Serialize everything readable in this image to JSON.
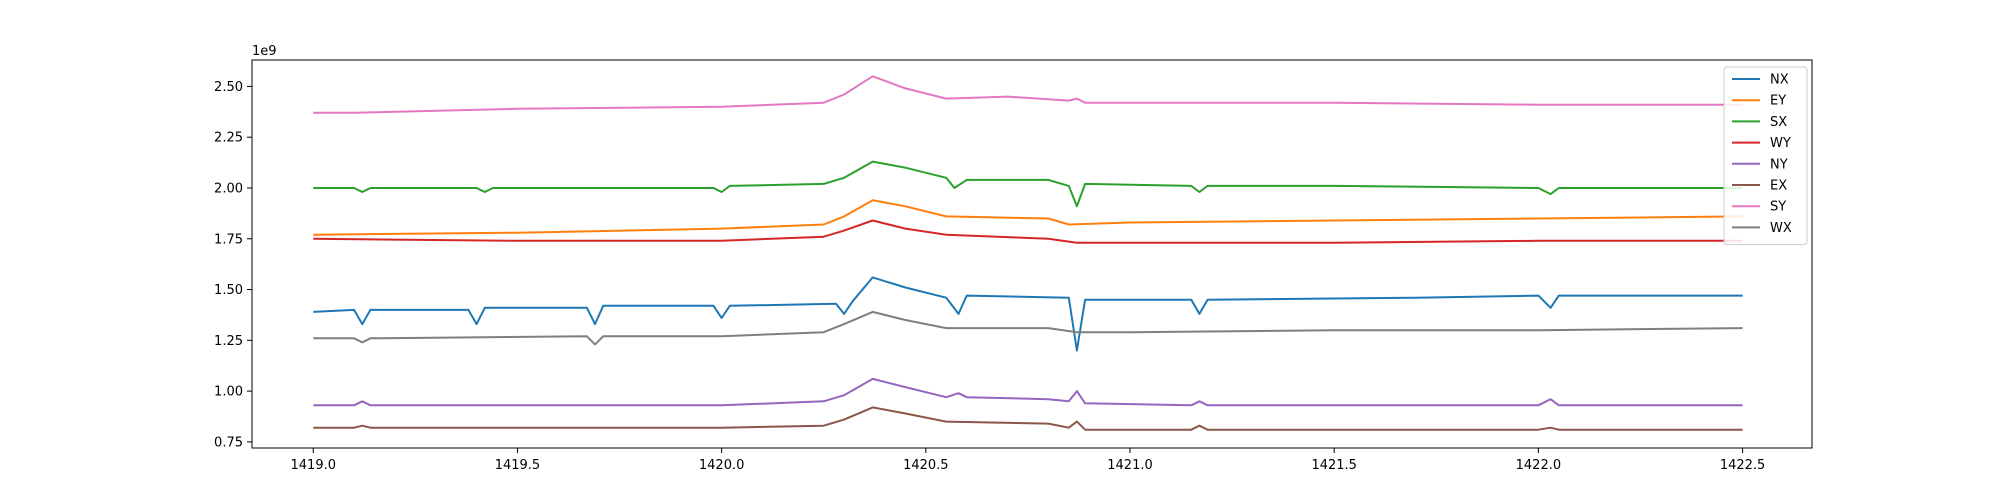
{
  "chart_data": {
    "type": "line",
    "title": "",
    "xlabel": "",
    "ylabel": "",
    "offset_text": "1e9",
    "y_scale_multiplier": 1000000000,
    "xlim": [
      1418.85,
      1422.67
    ],
    "ylim": [
      0.72,
      2.63
    ],
    "x_ticks": [
      1419.0,
      1419.5,
      1420.0,
      1420.5,
      1421.0,
      1421.5,
      1422.0,
      1422.5
    ],
    "x_tick_labels": [
      "1419.0",
      "1419.5",
      "1420.0",
      "1420.5",
      "1421.0",
      "1421.5",
      "1422.0",
      "1422.5"
    ],
    "y_ticks": [
      0.75,
      1.0,
      1.25,
      1.5,
      1.75,
      2.0,
      2.25,
      2.5
    ],
    "y_tick_labels": [
      "0.75",
      "1.00",
      "1.25",
      "1.50",
      "1.75",
      "2.00",
      "2.25",
      "2.50"
    ],
    "grid": false,
    "legend_position": "top-right",
    "series": [
      {
        "name": "NX",
        "color": "#1f77b4",
        "points": [
          [
            1419.0,
            1.39
          ],
          [
            1419.1,
            1.4
          ],
          [
            1419.12,
            1.33
          ],
          [
            1419.14,
            1.4
          ],
          [
            1419.38,
            1.4
          ],
          [
            1419.4,
            1.33
          ],
          [
            1419.42,
            1.41
          ],
          [
            1419.67,
            1.41
          ],
          [
            1419.69,
            1.33
          ],
          [
            1419.71,
            1.42
          ],
          [
            1419.98,
            1.42
          ],
          [
            1420.0,
            1.36
          ],
          [
            1420.02,
            1.42
          ],
          [
            1420.28,
            1.43
          ],
          [
            1420.3,
            1.38
          ],
          [
            1420.32,
            1.44
          ],
          [
            1420.37,
            1.56
          ],
          [
            1420.45,
            1.51
          ],
          [
            1420.55,
            1.46
          ],
          [
            1420.58,
            1.38
          ],
          [
            1420.6,
            1.47
          ],
          [
            1420.85,
            1.46
          ],
          [
            1420.87,
            1.2
          ],
          [
            1420.89,
            1.45
          ],
          [
            1421.15,
            1.45
          ],
          [
            1421.17,
            1.38
          ],
          [
            1421.19,
            1.45
          ],
          [
            1421.7,
            1.46
          ],
          [
            1422.0,
            1.47
          ],
          [
            1422.03,
            1.41
          ],
          [
            1422.05,
            1.47
          ],
          [
            1422.5,
            1.47
          ]
        ]
      },
      {
        "name": "EY",
        "color": "#ff7f0e",
        "points": [
          [
            1419.0,
            1.77
          ],
          [
            1419.5,
            1.78
          ],
          [
            1420.0,
            1.8
          ],
          [
            1420.25,
            1.82
          ],
          [
            1420.3,
            1.86
          ],
          [
            1420.37,
            1.94
          ],
          [
            1420.45,
            1.91
          ],
          [
            1420.55,
            1.86
          ],
          [
            1420.8,
            1.85
          ],
          [
            1420.85,
            1.82
          ],
          [
            1421.0,
            1.83
          ],
          [
            1421.5,
            1.84
          ],
          [
            1422.0,
            1.85
          ],
          [
            1422.5,
            1.86
          ]
        ]
      },
      {
        "name": "SX",
        "color": "#2ca02c",
        "points": [
          [
            1419.0,
            2.0
          ],
          [
            1419.1,
            2.0
          ],
          [
            1419.12,
            1.98
          ],
          [
            1419.14,
            2.0
          ],
          [
            1419.4,
            2.0
          ],
          [
            1419.42,
            1.98
          ],
          [
            1419.44,
            2.0
          ],
          [
            1419.98,
            2.0
          ],
          [
            1420.0,
            1.98
          ],
          [
            1420.02,
            2.01
          ],
          [
            1420.25,
            2.02
          ],
          [
            1420.3,
            2.05
          ],
          [
            1420.37,
            2.13
          ],
          [
            1420.45,
            2.1
          ],
          [
            1420.55,
            2.05
          ],
          [
            1420.57,
            2.0
          ],
          [
            1420.6,
            2.04
          ],
          [
            1420.8,
            2.04
          ],
          [
            1420.85,
            2.01
          ],
          [
            1420.87,
            1.91
          ],
          [
            1420.89,
            2.02
          ],
          [
            1421.15,
            2.01
          ],
          [
            1421.17,
            1.98
          ],
          [
            1421.19,
            2.01
          ],
          [
            1421.5,
            2.01
          ],
          [
            1422.0,
            2.0
          ],
          [
            1422.03,
            1.97
          ],
          [
            1422.05,
            2.0
          ],
          [
            1422.5,
            2.0
          ]
        ]
      },
      {
        "name": "WY",
        "color": "#d62728",
        "points": [
          [
            1419.0,
            1.75
          ],
          [
            1419.5,
            1.74
          ],
          [
            1420.0,
            1.74
          ],
          [
            1420.25,
            1.76
          ],
          [
            1420.3,
            1.79
          ],
          [
            1420.37,
            1.84
          ],
          [
            1420.45,
            1.8
          ],
          [
            1420.55,
            1.77
          ],
          [
            1420.8,
            1.75
          ],
          [
            1420.87,
            1.73
          ],
          [
            1421.0,
            1.73
          ],
          [
            1421.5,
            1.73
          ],
          [
            1422.0,
            1.74
          ],
          [
            1422.5,
            1.74
          ]
        ]
      },
      {
        "name": "NY",
        "color": "#9467bd",
        "points": [
          [
            1419.0,
            0.93
          ],
          [
            1419.1,
            0.93
          ],
          [
            1419.12,
            0.95
          ],
          [
            1419.14,
            0.93
          ],
          [
            1419.5,
            0.93
          ],
          [
            1420.0,
            0.93
          ],
          [
            1420.25,
            0.95
          ],
          [
            1420.3,
            0.98
          ],
          [
            1420.37,
            1.06
          ],
          [
            1420.45,
            1.02
          ],
          [
            1420.55,
            0.97
          ],
          [
            1420.58,
            0.99
          ],
          [
            1420.6,
            0.97
          ],
          [
            1420.8,
            0.96
          ],
          [
            1420.85,
            0.95
          ],
          [
            1420.87,
            1.0
          ],
          [
            1420.89,
            0.94
          ],
          [
            1421.15,
            0.93
          ],
          [
            1421.17,
            0.95
          ],
          [
            1421.19,
            0.93
          ],
          [
            1421.5,
            0.93
          ],
          [
            1422.0,
            0.93
          ],
          [
            1422.03,
            0.96
          ],
          [
            1422.05,
            0.93
          ],
          [
            1422.5,
            0.93
          ]
        ]
      },
      {
        "name": "EX",
        "color": "#8c564b",
        "points": [
          [
            1419.0,
            0.82
          ],
          [
            1419.1,
            0.82
          ],
          [
            1419.12,
            0.83
          ],
          [
            1419.14,
            0.82
          ],
          [
            1419.5,
            0.82
          ],
          [
            1420.0,
            0.82
          ],
          [
            1420.25,
            0.83
          ],
          [
            1420.3,
            0.86
          ],
          [
            1420.37,
            0.92
          ],
          [
            1420.45,
            0.89
          ],
          [
            1420.55,
            0.85
          ],
          [
            1420.8,
            0.84
          ],
          [
            1420.85,
            0.82
          ],
          [
            1420.87,
            0.85
          ],
          [
            1420.89,
            0.81
          ],
          [
            1421.15,
            0.81
          ],
          [
            1421.17,
            0.83
          ],
          [
            1421.19,
            0.81
          ],
          [
            1421.5,
            0.81
          ],
          [
            1422.0,
            0.81
          ],
          [
            1422.03,
            0.82
          ],
          [
            1422.05,
            0.81
          ],
          [
            1422.5,
            0.81
          ]
        ]
      },
      {
        "name": "SY",
        "color": "#e377c2",
        "points": [
          [
            1419.0,
            2.37
          ],
          [
            1419.1,
            2.37
          ],
          [
            1419.5,
            2.39
          ],
          [
            1420.0,
            2.4
          ],
          [
            1420.25,
            2.42
          ],
          [
            1420.3,
            2.46
          ],
          [
            1420.37,
            2.55
          ],
          [
            1420.45,
            2.49
          ],
          [
            1420.55,
            2.44
          ],
          [
            1420.7,
            2.45
          ],
          [
            1420.85,
            2.43
          ],
          [
            1420.87,
            2.44
          ],
          [
            1420.89,
            2.42
          ],
          [
            1421.0,
            2.42
          ],
          [
            1421.5,
            2.42
          ],
          [
            1422.0,
            2.41
          ],
          [
            1422.5,
            2.41
          ]
        ]
      },
      {
        "name": "WX",
        "color": "#7f7f7f",
        "points": [
          [
            1419.0,
            1.26
          ],
          [
            1419.1,
            1.26
          ],
          [
            1419.12,
            1.24
          ],
          [
            1419.14,
            1.26
          ],
          [
            1419.67,
            1.27
          ],
          [
            1419.69,
            1.23
          ],
          [
            1419.71,
            1.27
          ],
          [
            1420.0,
            1.27
          ],
          [
            1420.25,
            1.29
          ],
          [
            1420.3,
            1.33
          ],
          [
            1420.37,
            1.39
          ],
          [
            1420.45,
            1.35
          ],
          [
            1420.55,
            1.31
          ],
          [
            1420.8,
            1.31
          ],
          [
            1420.87,
            1.29
          ],
          [
            1421.0,
            1.29
          ],
          [
            1421.5,
            1.3
          ],
          [
            1422.0,
            1.3
          ],
          [
            1422.5,
            1.31
          ]
        ]
      }
    ]
  }
}
